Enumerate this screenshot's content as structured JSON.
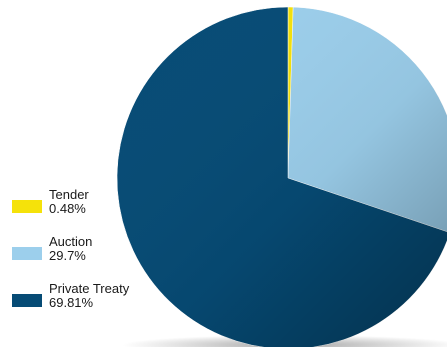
{
  "chart_data": {
    "type": "pie",
    "title": "",
    "legend_position": "left",
    "start_angle_deg": 0,
    "direction": "clockwise",
    "slices": [
      {
        "label": "Tender",
        "value": 0.48,
        "value_label": "0.48%",
        "color": "#f5e20a"
      },
      {
        "label": "Auction",
        "value": 29.7,
        "value_label": "29.7%",
        "color": "#9ccfec"
      },
      {
        "label": "Private Treaty",
        "value": 69.81,
        "value_label": "69.81%",
        "color": "#064b75"
      }
    ]
  },
  "legend": {
    "items": [
      {
        "label": "Tender",
        "value_label": "0.48%",
        "color": "#f5e20a"
      },
      {
        "label": "Auction",
        "value_label": "29.7%",
        "color": "#9ccfec"
      },
      {
        "label": "Private Treaty",
        "value_label": "69.81%",
        "color": "#064b75"
      }
    ]
  }
}
